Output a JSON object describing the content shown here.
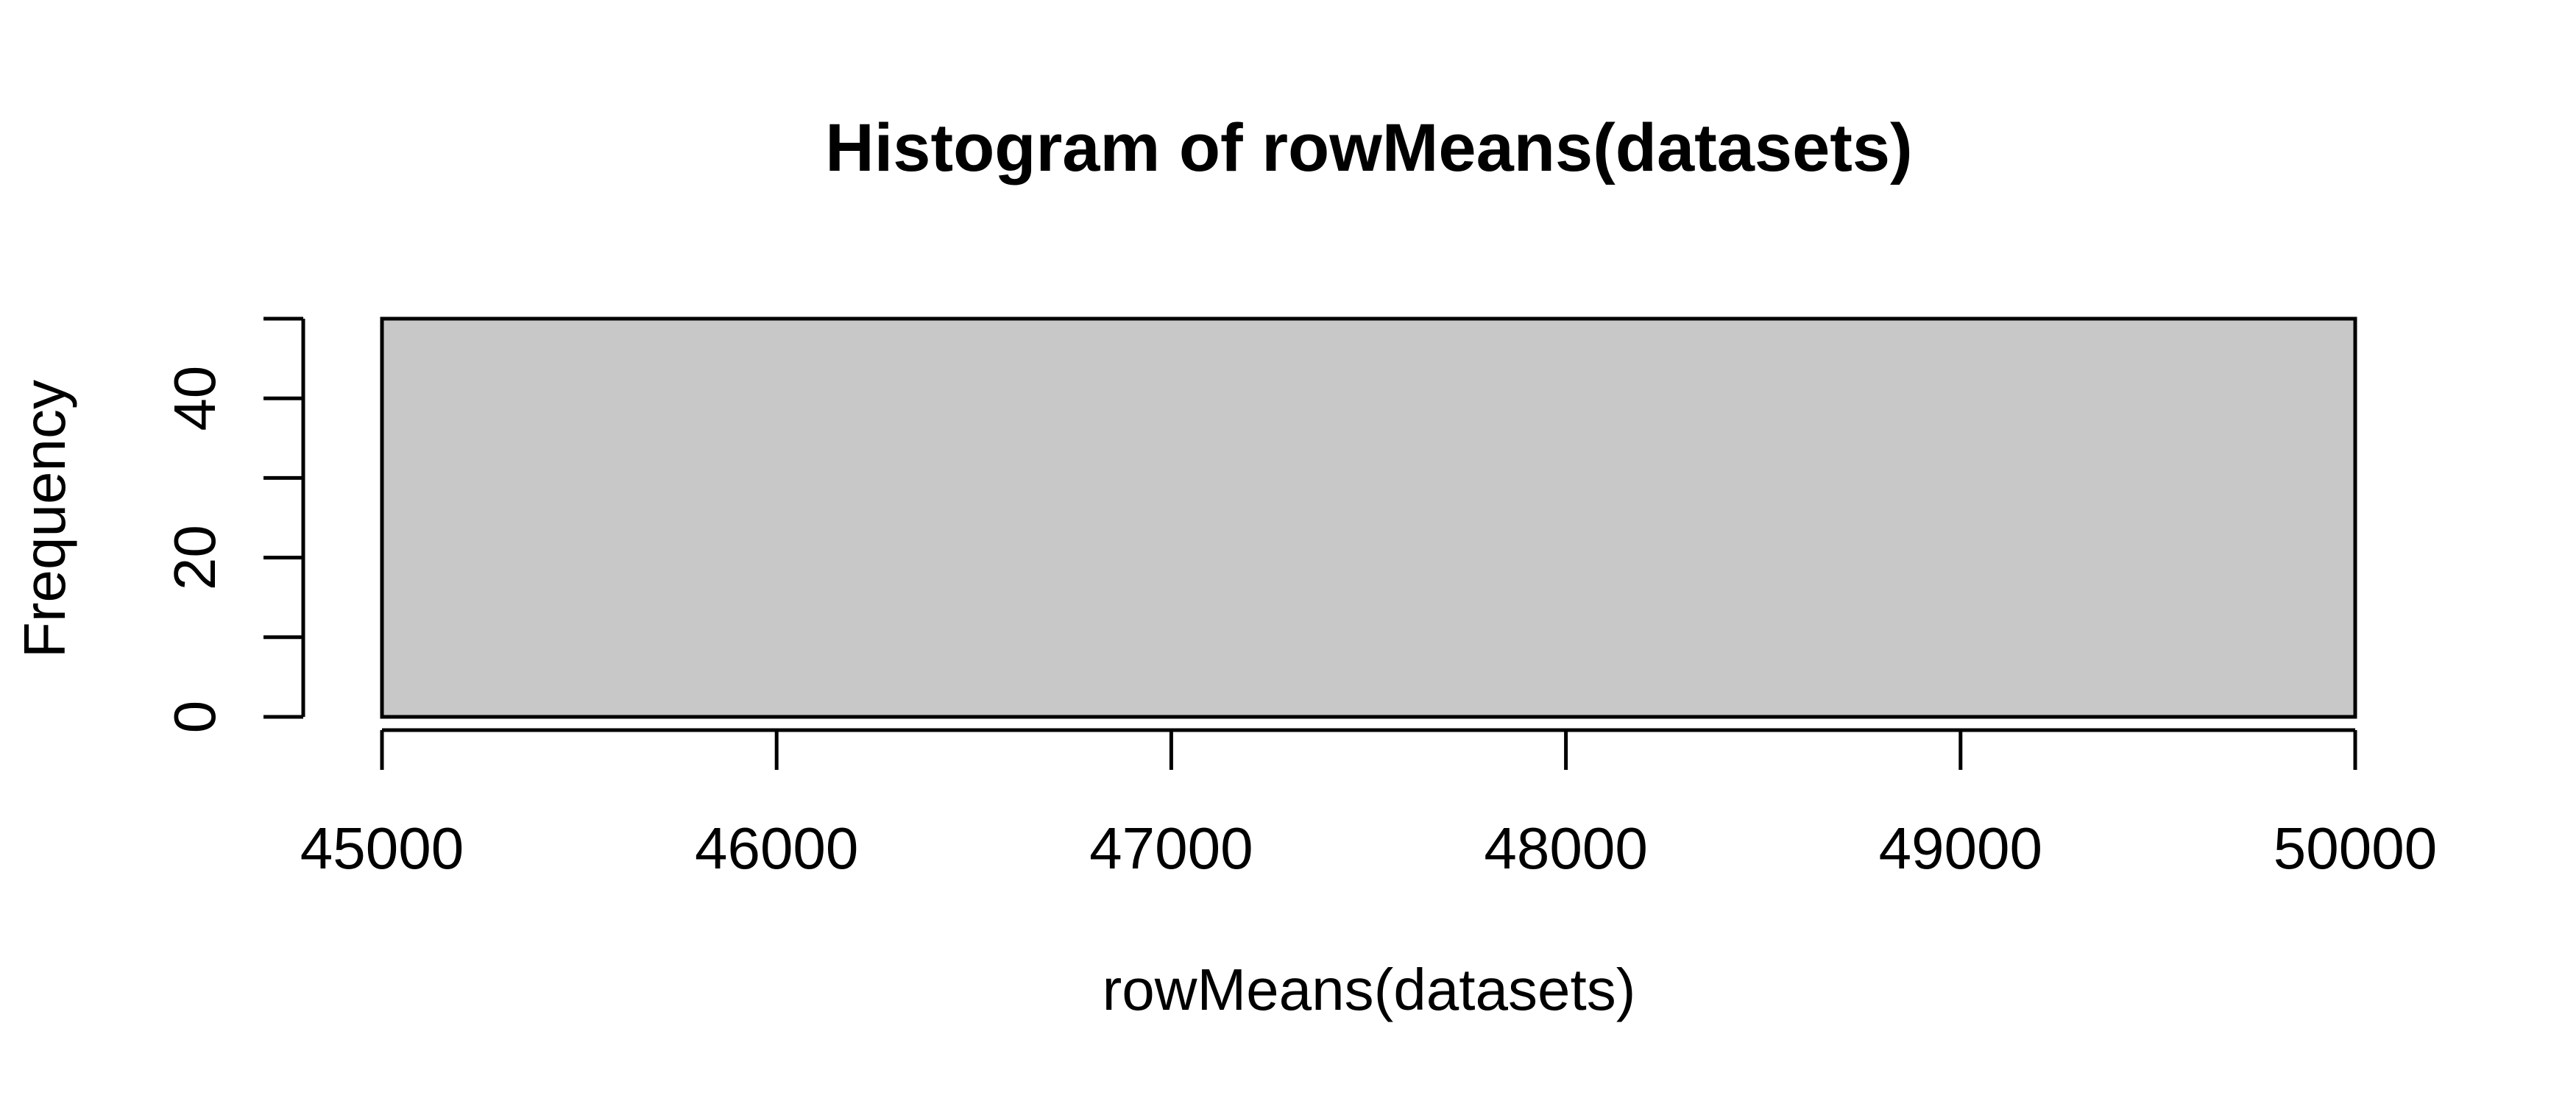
{
  "chart_data": {
    "type": "bar",
    "title": "Histogram of rowMeans(datasets)",
    "xlabel": "rowMeans(datasets)",
    "ylabel": "Frequency",
    "bins": [
      {
        "x_start": 45000,
        "x_end": 50000,
        "count": 50
      }
    ],
    "x_ticks": [
      45000,
      46000,
      47000,
      48000,
      49000,
      50000
    ],
    "x_tick_labels": [
      "45000",
      "46000",
      "47000",
      "48000",
      "49000",
      "50000"
    ],
    "y_ticks": [
      0,
      10,
      20,
      30,
      40,
      50
    ],
    "y_tick_labels": [
      "0",
      "",
      "20",
      "",
      "40",
      ""
    ],
    "xlim": [
      45000,
      50000
    ],
    "ylim": [
      0,
      50
    ],
    "grid": false,
    "colors": {
      "bar_fill": "#c8c8c8",
      "bar_stroke": "#000000",
      "axis": "#000000",
      "background": "#ffffff"
    }
  }
}
